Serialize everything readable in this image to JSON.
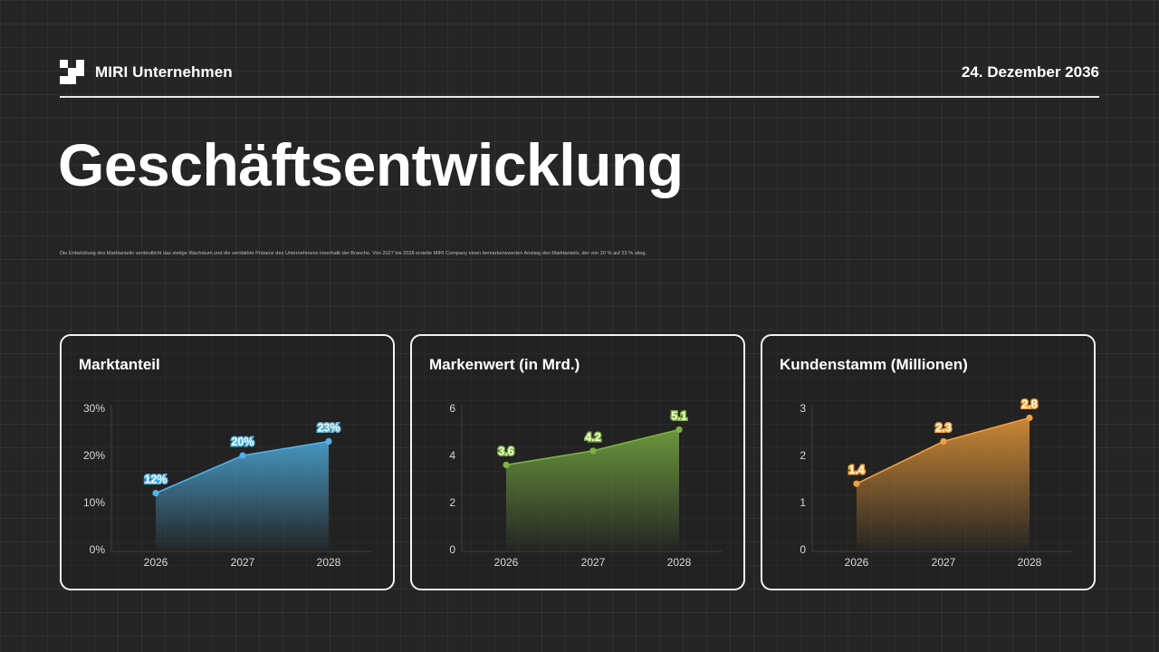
{
  "header": {
    "company": "MIRI Unternehmen",
    "date": "24. Dezember 2036"
  },
  "title": "Geschäftsentwicklung",
  "description": "Die Entwicklung des Marktanteils verdeutlicht das stetige Wachstum und die verstärkte Präsenz des Unternehmens innerhalb der Branche. Von 2027 bis 2028 erzielte MIRI Company einen bemerkenswerten Anstieg des Marktanteils, der von 20 % auf 23 % stieg.",
  "colors": {
    "marktanteil": "#4fb3e8",
    "markenwert": "#7cb342",
    "kundenstamm": "#f4a03a"
  },
  "chart_data": [
    {
      "type": "area",
      "title": "Marktanteil",
      "categories": [
        "2026",
        "2027",
        "2028"
      ],
      "values": [
        12,
        20,
        23
      ],
      "value_labels": [
        "12%",
        "20%",
        "23%"
      ],
      "ylim": [
        0,
        30
      ],
      "yticks": [
        0,
        10,
        20,
        30
      ],
      "ytick_labels": [
        "0%",
        "10%",
        "20%",
        "30%"
      ],
      "color": "#4fb3e8",
      "grid": false
    },
    {
      "type": "area",
      "title": "Markenwert (in Mrd.)",
      "categories": [
        "2026",
        "2027",
        "2028"
      ],
      "values": [
        3.6,
        4.2,
        5.1
      ],
      "value_labels": [
        "3.6",
        "4.2",
        "5.1"
      ],
      "ylim": [
        0,
        6
      ],
      "yticks": [
        0,
        2,
        4,
        6
      ],
      "ytick_labels": [
        "0",
        "2",
        "4",
        "6"
      ],
      "color": "#7cb342",
      "grid": false
    },
    {
      "type": "area",
      "title": "Kundenstamm (Millionen)",
      "categories": [
        "2026",
        "2027",
        "2028"
      ],
      "values": [
        1.4,
        2.3,
        2.8
      ],
      "value_labels": [
        "1.4",
        "2.3",
        "2.8"
      ],
      "ylim": [
        0,
        3
      ],
      "yticks": [
        0,
        1,
        2,
        3
      ],
      "ytick_labels": [
        "0",
        "1",
        "2",
        "3"
      ],
      "color": "#f4a03a",
      "grid": false
    }
  ]
}
